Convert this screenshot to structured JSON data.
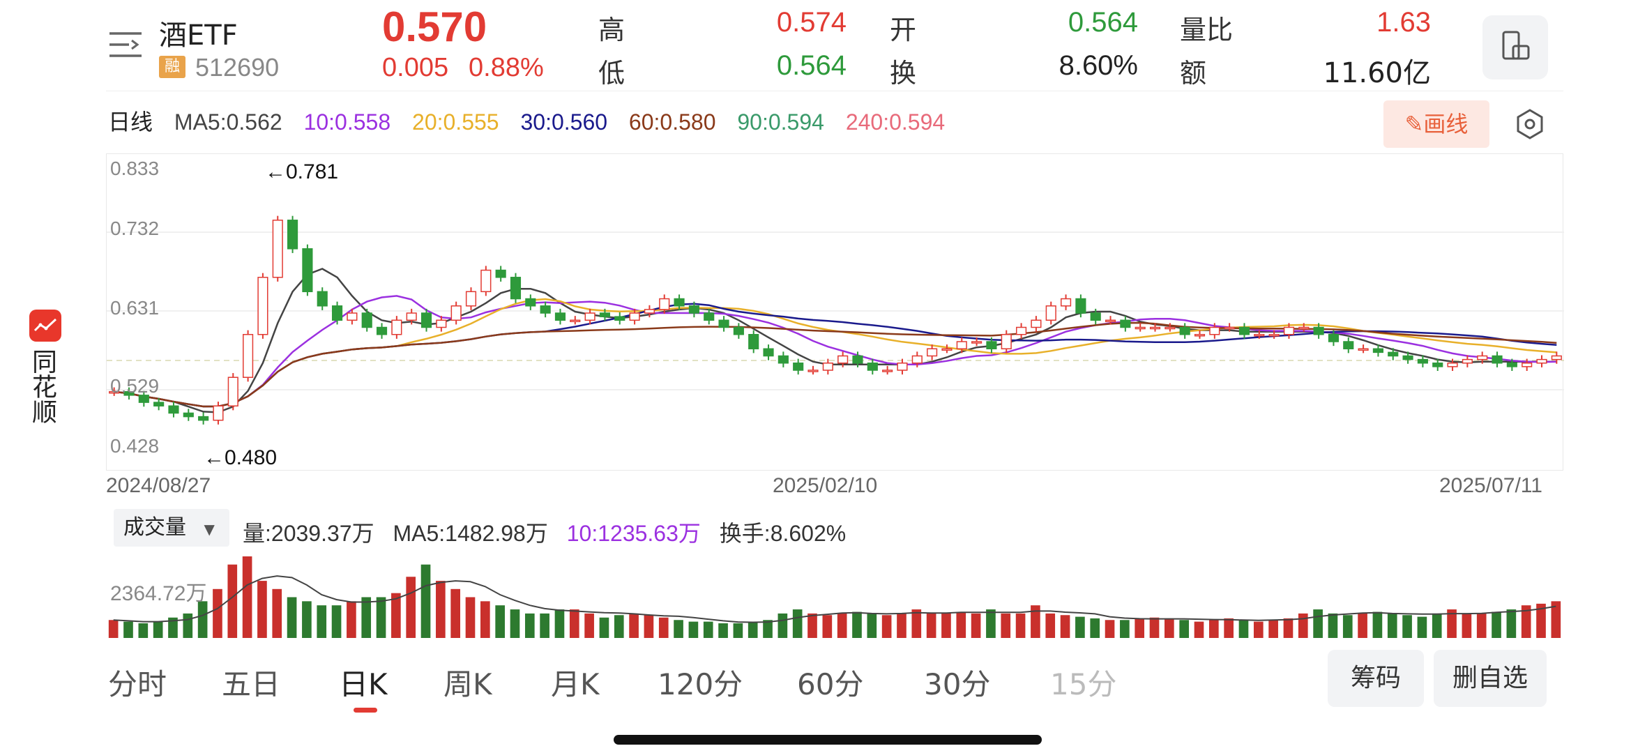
{
  "brand": {
    "name": "同花顺",
    "logo_icon": "ths-logo-icon"
  },
  "header": {
    "name": "酒ETF",
    "rong_badge": "融",
    "code": "512690",
    "price": "0.570",
    "change_abs": "0.005",
    "change_pct": "0.88%",
    "stats": {
      "high_label": "高",
      "high": "0.574",
      "low_label": "低",
      "low": "0.564",
      "open_label": "开",
      "open": "0.564",
      "turnover_label": "换",
      "turnover": "8.60%",
      "vol_ratio_label": "量比",
      "vol_ratio": "1.63",
      "amount_label": "额",
      "amount": "11.60亿"
    },
    "icons": {
      "menu": "menu-icon",
      "device": "device-toggle-icon"
    },
    "colors": {
      "up": "#e23b33",
      "down": "#2e9a3b"
    }
  },
  "ma": {
    "period_label": "日线",
    "ma5": "MA5:0.562",
    "ma10": "10:0.558",
    "ma20": "20:0.555",
    "ma30": "30:0.560",
    "ma60": "60:0.580",
    "ma90": "90:0.594",
    "ma240": "240:0.594",
    "colors": {
      "ma5": "#444444",
      "ma10": "#9b30e0",
      "ma20": "#e8b02a",
      "ma30": "#1a1a8c",
      "ma60": "#8a3a1a",
      "ma90": "#3a9a6a",
      "ma240": "#e86a7a"
    }
  },
  "tools": {
    "draw_label": "画线",
    "draw_icon": "pencil-icon",
    "settings_icon": "settings-icon"
  },
  "chart": {
    "y_ticks": [
      "0.833",
      "0.732",
      "0.631",
      "0.529",
      "0.428"
    ],
    "x_labels": [
      "2024/08/27",
      "2025/02/10",
      "2025/07/11"
    ],
    "max_label": "←0.781",
    "min_label": "←0.480"
  },
  "chart_data": {
    "type": "line",
    "x_start": "2024/08/27",
    "x_end": "2025/07/11",
    "ylim": [
      0.428,
      0.833
    ],
    "close": [
      0.52,
      0.515,
      0.505,
      0.5,
      0.49,
      0.485,
      0.48,
      0.5,
      0.54,
      0.6,
      0.68,
      0.76,
      0.72,
      0.66,
      0.64,
      0.62,
      0.63,
      0.61,
      0.6,
      0.62,
      0.63,
      0.61,
      0.62,
      0.64,
      0.66,
      0.69,
      0.68,
      0.65,
      0.64,
      0.63,
      0.62,
      0.62,
      0.63,
      0.625,
      0.62,
      0.63,
      0.635,
      0.65,
      0.64,
      0.63,
      0.62,
      0.61,
      0.6,
      0.58,
      0.57,
      0.56,
      0.55,
      0.55,
      0.56,
      0.57,
      0.56,
      0.55,
      0.55,
      0.56,
      0.57,
      0.58,
      0.58,
      0.59,
      0.59,
      0.58,
      0.6,
      0.61,
      0.62,
      0.64,
      0.65,
      0.63,
      0.62,
      0.62,
      0.61,
      0.61,
      0.61,
      0.61,
      0.6,
      0.6,
      0.61,
      0.61,
      0.6,
      0.6,
      0.6,
      0.61,
      0.61,
      0.6,
      0.59,
      0.58,
      0.58,
      0.575,
      0.57,
      0.565,
      0.56,
      0.555,
      0.56,
      0.565,
      0.57,
      0.56,
      0.555,
      0.56,
      0.565,
      0.57
    ],
    "volume_ratio": [
      0.22,
      0.2,
      0.18,
      0.2,
      0.25,
      0.3,
      0.45,
      0.6,
      0.9,
      1.0,
      0.7,
      0.6,
      0.5,
      0.45,
      0.4,
      0.4,
      0.45,
      0.5,
      0.5,
      0.55,
      0.75,
      0.9,
      0.7,
      0.6,
      0.5,
      0.45,
      0.4,
      0.35,
      0.3,
      0.3,
      0.35,
      0.35,
      0.3,
      0.25,
      0.28,
      0.3,
      0.28,
      0.25,
      0.22,
      0.2,
      0.2,
      0.18,
      0.18,
      0.2,
      0.22,
      0.3,
      0.35,
      0.3,
      0.28,
      0.3,
      0.32,
      0.3,
      0.28,
      0.3,
      0.35,
      0.3,
      0.3,
      0.32,
      0.3,
      0.35,
      0.3,
      0.3,
      0.4,
      0.3,
      0.28,
      0.26,
      0.24,
      0.22,
      0.22,
      0.24,
      0.25,
      0.24,
      0.22,
      0.2,
      0.22,
      0.24,
      0.22,
      0.2,
      0.22,
      0.24,
      0.3,
      0.35,
      0.3,
      0.28,
      0.3,
      0.32,
      0.3,
      0.28,
      0.26,
      0.3,
      0.35,
      0.3,
      0.3,
      0.32,
      0.35,
      0.4,
      0.42,
      0.45
    ]
  },
  "volume": {
    "selector_label": "成交量",
    "vol": "量:2039.37万",
    "ma5": "MA5:1482.98万",
    "ma10": "10:1235.63万",
    "turnover": "换手:8.602%",
    "y_label": "2364.72万"
  },
  "tabs": [
    "分时",
    "五日",
    "日K",
    "周K",
    "月K",
    "120分",
    "60分",
    "30分",
    "15分"
  ],
  "buttons": {
    "chips": "筹码",
    "remove_watch": "删自选"
  }
}
